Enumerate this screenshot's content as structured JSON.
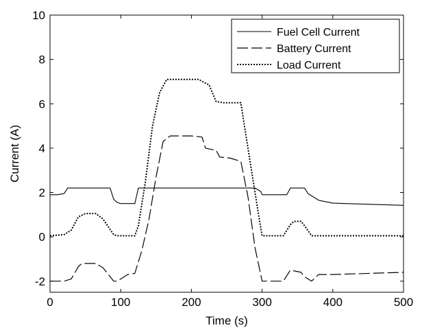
{
  "chart_data": {
    "type": "line",
    "title": "",
    "xlabel": "Time (s)",
    "ylabel": "Current (A)",
    "xlim": [
      0,
      500
    ],
    "ylim": [
      -2.5,
      10
    ],
    "xticks": [
      0,
      100,
      200,
      300,
      400,
      500
    ],
    "yticks": [
      -2,
      0,
      2,
      4,
      6,
      8,
      10
    ],
    "grid": false,
    "legend_position": "top-right",
    "series": [
      {
        "name": "Fuel Cell Current",
        "style": "solid",
        "color": "#000000",
        "x": [
          0,
          10,
          20,
          25,
          85,
          90,
          95,
          100,
          120,
          125,
          290,
          298,
          300,
          335,
          340,
          360,
          365,
          370,
          380,
          400,
          450,
          500
        ],
        "y": [
          1.9,
          1.9,
          1.95,
          2.2,
          2.2,
          1.7,
          1.55,
          1.5,
          1.5,
          2.2,
          2.2,
          2.05,
          1.9,
          1.9,
          2.2,
          2.2,
          1.95,
          1.85,
          1.65,
          1.52,
          1.47,
          1.42
        ]
      },
      {
        "name": "Battery Current",
        "style": "dashed",
        "color": "#000000",
        "x": [
          0,
          20,
          30,
          40,
          45,
          65,
          75,
          90,
          95,
          110,
          120,
          130,
          140,
          150,
          160,
          170,
          200,
          215,
          220,
          235,
          240,
          255,
          270,
          280,
          290,
          300,
          330,
          340,
          355,
          360,
          370,
          380,
          400,
          500
        ],
        "y": [
          -2.0,
          -2.0,
          -1.9,
          -1.35,
          -1.2,
          -1.2,
          -1.4,
          -2.0,
          -2.0,
          -1.7,
          -1.65,
          -0.6,
          0.8,
          2.7,
          4.3,
          4.55,
          4.55,
          4.5,
          4.0,
          3.9,
          3.6,
          3.55,
          3.4,
          1.8,
          -0.5,
          -2.0,
          -2.0,
          -1.5,
          -1.6,
          -1.8,
          -2.0,
          -1.7,
          -1.7,
          -1.6
        ]
      },
      {
        "name": "Load Current",
        "style": "dotted",
        "color": "#000000",
        "x": [
          0,
          20,
          30,
          40,
          50,
          65,
          75,
          90,
          95,
          120,
          125,
          135,
          145,
          155,
          165,
          210,
          225,
          235,
          245,
          270,
          275,
          285,
          295,
          300,
          330,
          340,
          345,
          355,
          360,
          370,
          380,
          500
        ],
        "y": [
          0.05,
          0.1,
          0.3,
          0.9,
          1.05,
          1.05,
          0.8,
          0.1,
          0.05,
          0.05,
          0.5,
          2.5,
          5.0,
          6.5,
          7.1,
          7.1,
          6.85,
          6.1,
          6.05,
          6.05,
          5.0,
          3.0,
          1.0,
          0.05,
          0.05,
          0.55,
          0.7,
          0.7,
          0.5,
          0.05,
          0.05,
          0.05
        ]
      }
    ]
  }
}
